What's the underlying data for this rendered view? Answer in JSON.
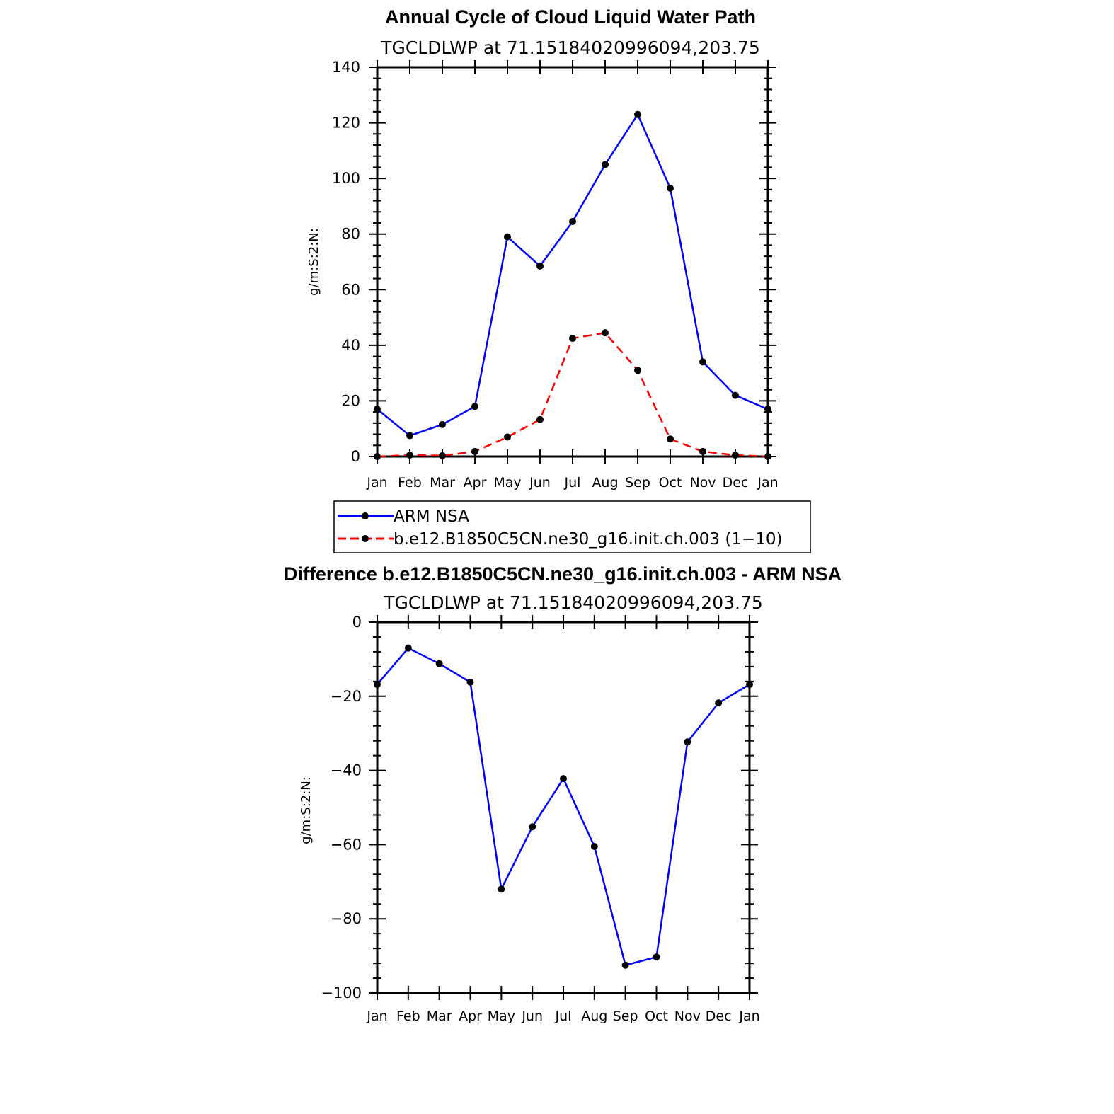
{
  "chart_data": [
    {
      "type": "line",
      "title": "Annual Cycle of Cloud Liquid Water Path",
      "subtitle": "TGCLDLWP  at 71.15184020996094,203.75",
      "ylabel": "g/m:S:2:N:",
      "xlabel": "",
      "categories": [
        "Jan",
        "Feb",
        "Mar",
        "Apr",
        "May",
        "Jun",
        "Jul",
        "Aug",
        "Sep",
        "Oct",
        "Nov",
        "Dec",
        "Jan"
      ],
      "ylim": [
        0,
        140
      ],
      "yticks": [
        "0",
        "20",
        "40",
        "60",
        "80",
        "100",
        "120",
        "140"
      ],
      "ytick_values": [
        0,
        20,
        40,
        60,
        80,
        100,
        120,
        140
      ],
      "grid": false,
      "legend_position": "below",
      "series": [
        {
          "name": "ARM  NSA",
          "color": "#0000ff",
          "dash": "solid",
          "values": [
            17,
            7.5,
            11.5,
            18,
            79,
            68.5,
            84.5,
            105,
            123,
            96.5,
            34,
            22,
            17
          ]
        },
        {
          "name": "b.e12.B1850C5CN.ne30_g16.init.ch.003 (1−10)",
          "color": "#ff0000",
          "dash": "dashed",
          "values": [
            0,
            0.5,
            0.3,
            1.8,
            7,
            13.3,
            42.5,
            44.5,
            31,
            6.3,
            1.8,
            0.5,
            0
          ]
        }
      ]
    },
    {
      "type": "line",
      "title": "Difference b.e12.B1850C5CN.ne30_g16.init.ch.003 - ARM NSA",
      "subtitle": "TGCLDLWP  at 71.15184020996094,203.75",
      "ylabel": "g/m:S:2:N:",
      "xlabel": "",
      "categories": [
        "Jan",
        "Feb",
        "Mar",
        "Apr",
        "May",
        "Jun",
        "Jul",
        "Aug",
        "Sep",
        "Oct",
        "Nov",
        "Dec",
        "Jan"
      ],
      "ylim": [
        -100,
        0
      ],
      "yticks": [
        "0",
        "−20",
        "−40",
        "−60",
        "−80",
        "−100"
      ],
      "ytick_values": [
        0,
        -20,
        -40,
        -60,
        -80,
        -100
      ],
      "grid": false,
      "series": [
        {
          "color": "#0000ff",
          "dash": "solid",
          "values": [
            -16.8,
            -7,
            -11.2,
            -16.2,
            -72,
            -55.2,
            -42.2,
            -60.5,
            -92.5,
            -90.3,
            -32.3,
            -21.8,
            -16.8
          ]
        }
      ]
    }
  ]
}
